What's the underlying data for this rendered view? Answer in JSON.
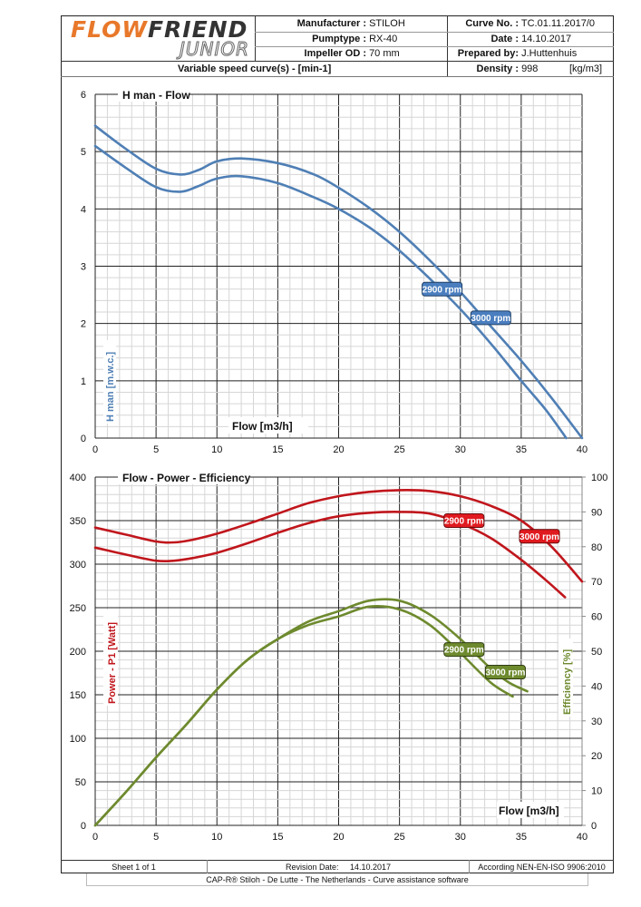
{
  "header": {
    "logo": {
      "part1": "FLOW",
      "part2": "FRIEND",
      "sub": "JUNIOR"
    },
    "manufacturer_label": "Manufacturer :",
    "manufacturer": "STILOH",
    "pumptype_label": "Pumptype :",
    "pumptype": "RX-40",
    "impeller_label": "Impeller OD :",
    "impeller": "70 mm",
    "curve_no_label": "Curve No. :",
    "curve_no": "TC.01.11.2017/0",
    "date_label": "Date :",
    "date": "14.10.2017",
    "prepared_label": "Prepared by:",
    "prepared": "J.Huttenhuis",
    "variable_speed": "Variable speed curve(s) -  [min-1]",
    "density_label": "Density :",
    "density": "998",
    "density_unit": "[kg/m3]"
  },
  "footer": {
    "sheet": "Sheet 1 of 1",
    "revision_label": "Revision Date:",
    "revision_date": "14.10.2017",
    "standard": "According NEN-EN-ISO 9906:2010",
    "credit": "CAP-R®  Stiloh - De Lutte - The Netherlands - Curve assistance software"
  },
  "chart_data": [
    {
      "type": "line",
      "title": "H man - Flow",
      "xlabel": "Flow [m3/h]",
      "ylabel": "H man [m.w.c.]",
      "xlim": [
        0,
        40
      ],
      "ylim": [
        0,
        6
      ],
      "xticks": [
        "0",
        "5",
        "10",
        "15",
        "20",
        "25",
        "30",
        "35",
        "40"
      ],
      "yticks": [
        "0",
        "1",
        "2",
        "3",
        "4",
        "5",
        "6"
      ],
      "grid": true,
      "color": "#4f7fb5",
      "series": [
        {
          "name": "3000 rpm",
          "x": [
            0,
            2.5,
            5,
            7,
            8.5,
            10,
            12,
            15,
            18,
            20,
            22.5,
            25,
            27.5,
            30,
            32.5,
            35,
            37.5,
            40
          ],
          "y": [
            5.45,
            5.05,
            4.7,
            4.6,
            4.68,
            4.83,
            4.88,
            4.8,
            4.6,
            4.37,
            4.02,
            3.6,
            3.1,
            2.55,
            1.95,
            1.35,
            0.7,
            0.0
          ]
        },
        {
          "name": "2900 rpm",
          "x": [
            0,
            2.5,
            5,
            7,
            8.5,
            10,
            12,
            15,
            18,
            20,
            22.5,
            25,
            27.5,
            30,
            32.5,
            35,
            37,
            38.7
          ],
          "y": [
            5.1,
            4.72,
            4.38,
            4.3,
            4.4,
            4.53,
            4.57,
            4.45,
            4.2,
            4.0,
            3.68,
            3.27,
            2.78,
            2.25,
            1.65,
            1.0,
            0.5,
            0.0
          ]
        }
      ],
      "labels": [
        {
          "text": "2900 rpm",
          "x": 28.5,
          "y": 2.6
        },
        {
          "text": "3000 rpm",
          "x": 32.5,
          "y": 2.1
        }
      ]
    },
    {
      "type": "line",
      "title": "Flow - Power - Efficiency",
      "xlabel": "Flow [m3/h]",
      "ylabel": "Power - P1 [Watt]",
      "y2label": "Efficiency  [%]",
      "xlim": [
        0,
        40
      ],
      "ylim": [
        0,
        400
      ],
      "y2lim": [
        0,
        100
      ],
      "xticks": [
        "0",
        "5",
        "10",
        "15",
        "20",
        "25",
        "30",
        "35",
        "40"
      ],
      "yticks": [
        "0",
        "50",
        "100",
        "150",
        "200",
        "250",
        "300",
        "350",
        "400"
      ],
      "y2ticks": [
        "0",
        "10",
        "20",
        "30",
        "40",
        "50",
        "60",
        "70",
        "80",
        "90",
        "100"
      ],
      "grid": true,
      "power_color": "#c0161c",
      "efficiency_color": "#6e8a2e",
      "power_series": [
        {
          "name": "3000 rpm",
          "x": [
            0,
            2.5,
            5,
            6.5,
            8,
            10,
            12.5,
            15,
            17.5,
            20,
            22.5,
            25,
            27.5,
            30,
            32.5,
            35,
            37.5,
            40
          ],
          "y": [
            342,
            334,
            326,
            325,
            328,
            335,
            346,
            358,
            370,
            378,
            383,
            385,
            384,
            378,
            367,
            350,
            320,
            280
          ]
        },
        {
          "name": "2900 rpm",
          "x": [
            0,
            2.5,
            5,
            6.5,
            8,
            10,
            12.5,
            15,
            17.5,
            20,
            22.5,
            25,
            27.5,
            30,
            32.5,
            35,
            37,
            38.6
          ],
          "y": [
            319,
            311,
            304,
            304,
            307,
            313,
            324,
            336,
            347,
            355,
            359,
            360,
            358,
            347,
            330,
            305,
            282,
            262
          ]
        }
      ],
      "efficiency_series": [
        {
          "name": "3000 rpm",
          "x": [
            0,
            2.5,
            5,
            7.5,
            10,
            12.5,
            15,
            17.5,
            20,
            22.5,
            25,
            27.5,
            30,
            32.5,
            34,
            35.5
          ],
          "y": [
            0,
            9.5,
            19.5,
            29,
            39,
            47.5,
            53.5,
            58.5,
            61.5,
            64.5,
            64.5,
            60.5,
            53.5,
            45,
            41,
            38.5
          ]
        },
        {
          "name": "2900 rpm",
          "x": [
            0,
            2.5,
            5,
            7.5,
            10,
            12.5,
            15,
            17.5,
            20,
            22.5,
            25,
            27.5,
            30,
            32.5,
            34.3
          ],
          "y": [
            0,
            9.5,
            19.5,
            29,
            39,
            47.5,
            53.5,
            57.5,
            60,
            62.8,
            62,
            57.5,
            49.5,
            41,
            37
          ]
        }
      ],
      "power_labels": [
        {
          "text": "2900 rpm",
          "x": 30.3,
          "y": 87.5
        },
        {
          "text": "3000 rpm",
          "x": 36.5,
          "y": 83
        }
      ],
      "efficiency_labels": [
        {
          "text": "2900 rpm",
          "x": 30.3,
          "y": 50.5
        },
        {
          "text": "3000 rpm",
          "x": 33.7,
          "y": 44
        }
      ]
    }
  ]
}
